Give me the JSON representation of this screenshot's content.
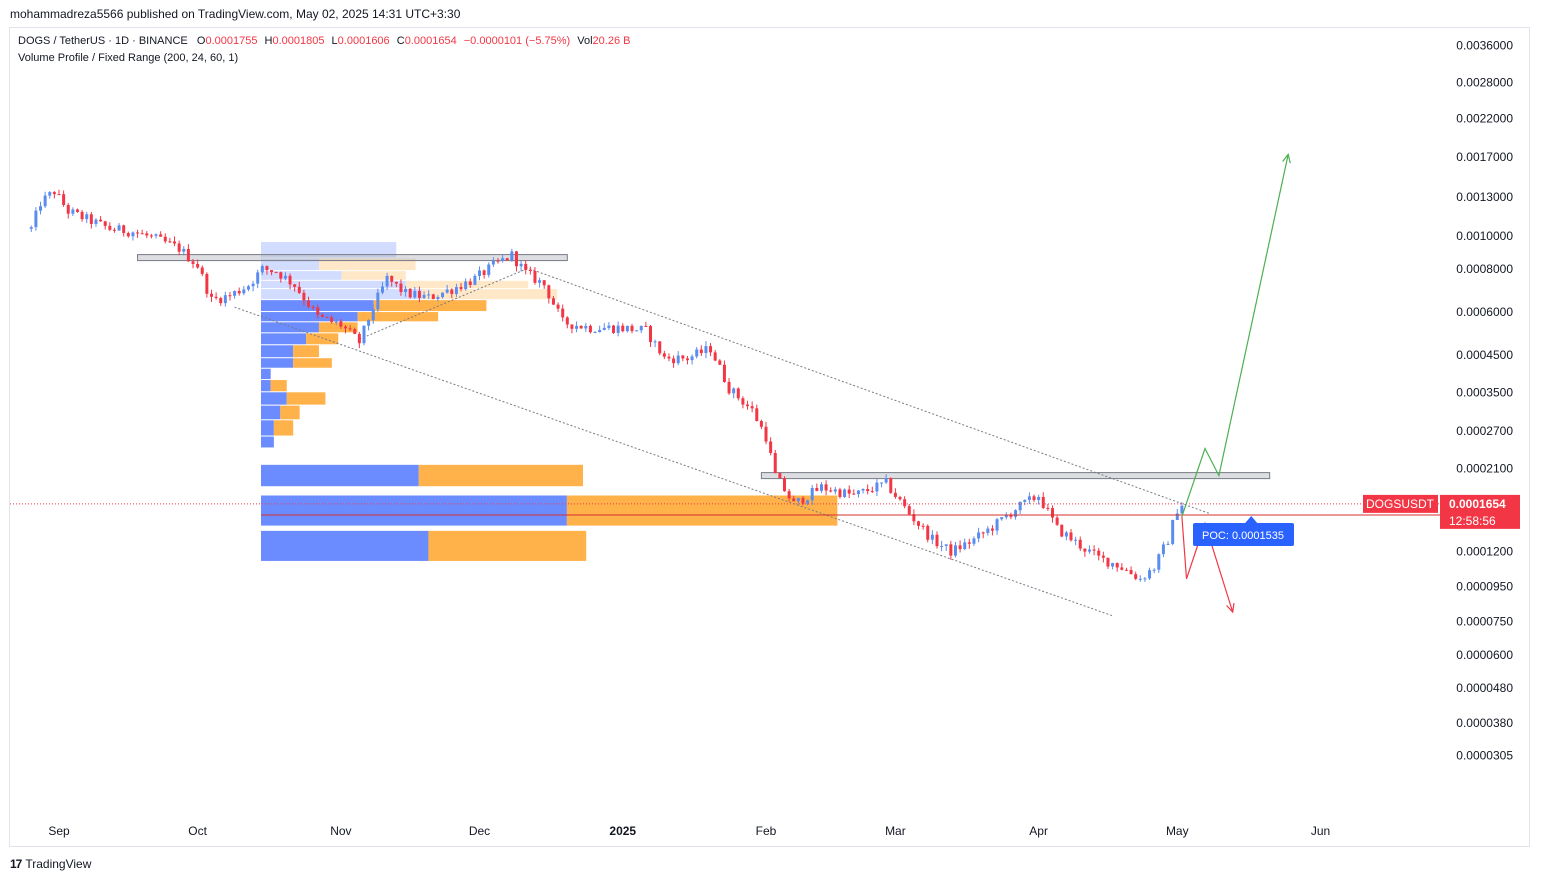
{
  "header": {
    "publisher": "mohammadreza5566 published on TradingView.com, May 02, 2025 14:31 UTC+3:30"
  },
  "legend": {
    "symbol": "DOGS / TetherUS · 1D · BINANCE",
    "open_label": "O",
    "open": "0.0001755",
    "high_label": "H",
    "high": "0.0001805",
    "low_label": "L",
    "low": "0.0001606",
    "close_label": "C",
    "close": "0.0001654",
    "change": "−0.0000101 (−5.75%)",
    "vol_label": "Vol",
    "vol": "20.26 B",
    "indicator": "Volume Profile / Fixed Range (200, 24, 60, 1)"
  },
  "price_tag": {
    "symbol": "DOGSUSDT",
    "price": "0.0001654",
    "countdown": "12:58:56",
    "color": "#f23645"
  },
  "poc": {
    "label": "POC: 0.0001535",
    "color": "#2962ff"
  },
  "footer": {
    "brand": "TradingView",
    "logo": "17"
  },
  "colors": {
    "up": "#5b8def",
    "down": "#f23645",
    "vp_up": "#6b8cff",
    "vp_down": "#ffb24a",
    "resistance": "#b2b5be",
    "bull_arrow": "#4caf50",
    "bear_arrow": "#f23645",
    "poc_line": "#d32f2f"
  },
  "chart_data": {
    "type": "candlestick",
    "scale": "log",
    "y_axis_ticks": [
      "0.0036000",
      "0.0028000",
      "0.0022000",
      "0.0017000",
      "0.0013000",
      "0.0010000",
      "0.0008000",
      "0.0006000",
      "0.0004500",
      "0.0003500",
      "0.0002700",
      "0.0002100",
      "0.0001200",
      "0.0000950",
      "0.0000750",
      "0.0000600",
      "0.0000480",
      "0.0000380",
      "0.0000305"
    ],
    "x_axis_ticks": [
      {
        "label": "Sep",
        "date": "2024-09-01"
      },
      {
        "label": "Oct",
        "date": "2024-10-01"
      },
      {
        "label": "Nov",
        "date": "2024-11-01"
      },
      {
        "label": "Dec",
        "date": "2024-12-01"
      },
      {
        "label": "2025",
        "date": "2025-01-01",
        "bold": true
      },
      {
        "label": "Feb",
        "date": "2025-02-01"
      },
      {
        "label": "Mar",
        "date": "2025-03-01"
      },
      {
        "label": "Apr",
        "date": "2025-04-01"
      },
      {
        "label": "May",
        "date": "2025-05-01"
      },
      {
        "label": "Jun",
        "date": "2025-06-01"
      }
    ],
    "price_path": [
      [
        "2024-08-26",
        0.00105
      ],
      [
        "2024-08-28",
        0.00125
      ],
      [
        "2024-08-31",
        0.00135
      ],
      [
        "2024-09-03",
        0.00118
      ],
      [
        "2024-09-07",
        0.00112
      ],
      [
        "2024-09-12",
        0.00105
      ],
      [
        "2024-09-17",
        0.00103
      ],
      [
        "2024-09-22",
        0.00098
      ],
      [
        "2024-09-27",
        0.00092
      ],
      [
        "2024-10-01",
        0.00082
      ],
      [
        "2024-10-04",
        0.00065
      ],
      [
        "2024-10-08",
        0.00067
      ],
      [
        "2024-10-12",
        0.00072
      ],
      [
        "2024-10-15",
        0.0008
      ],
      [
        "2024-10-18",
        0.00079
      ],
      [
        "2024-10-22",
        0.00072
      ],
      [
        "2024-10-27",
        0.00058
      ],
      [
        "2024-11-01",
        0.00055
      ],
      [
        "2024-11-05",
        0.00049
      ],
      [
        "2024-11-08",
        0.00062
      ],
      [
        "2024-11-11",
        0.00075
      ],
      [
        "2024-11-15",
        0.00068
      ],
      [
        "2024-11-20",
        0.00066
      ],
      [
        "2024-11-25",
        0.0007
      ],
      [
        "2024-11-30",
        0.00075
      ],
      [
        "2024-12-04",
        0.00082
      ],
      [
        "2024-12-08",
        0.00088
      ],
      [
        "2024-12-11",
        0.00078
      ],
      [
        "2024-12-15",
        0.00072
      ],
      [
        "2024-12-19",
        0.00056
      ],
      [
        "2024-12-25",
        0.00054
      ],
      [
        "2024-12-31",
        0.00054
      ],
      [
        "2025-01-06",
        0.00053
      ],
      [
        "2025-01-10",
        0.00044
      ],
      [
        "2025-01-15",
        0.00044
      ],
      [
        "2025-01-20",
        0.00047
      ],
      [
        "2025-01-24",
        0.00036
      ],
      [
        "2025-01-29",
        0.00031
      ],
      [
        "2025-02-01",
        0.00026
      ],
      [
        "2025-02-03",
        0.0002
      ],
      [
        "2025-02-07",
        0.000165
      ],
      [
        "2025-02-13",
        0.000185
      ],
      [
        "2025-02-20",
        0.000175
      ],
      [
        "2025-02-27",
        0.00019
      ],
      [
        "2025-03-04",
        0.000155
      ],
      [
        "2025-03-09",
        0.00013
      ],
      [
        "2025-03-13",
        0.00012
      ],
      [
        "2025-03-18",
        0.00013
      ],
      [
        "2025-03-23",
        0.000145
      ],
      [
        "2025-03-27",
        0.00016
      ],
      [
        "2025-04-01",
        0.000175
      ],
      [
        "2025-04-05",
        0.00014
      ],
      [
        "2025-04-10",
        0.000125
      ],
      [
        "2025-04-14",
        0.000115
      ],
      [
        "2025-04-18",
        0.00011
      ],
      [
        "2025-04-23",
        0.0001
      ],
      [
        "2025-04-26",
        0.000108
      ],
      [
        "2025-04-29",
        0.00013
      ],
      [
        "2025-05-01",
        0.00016
      ],
      [
        "2025-05-02",
        0.0001654
      ]
    ],
    "volume_profile": {
      "rows": [
        {
          "price_low": 0.00086,
          "price_high": 0.00096,
          "up": 0.42,
          "down": 0.0,
          "faded": true
        },
        {
          "price_low": 0.00079,
          "price_high": 0.00086,
          "up": 0.18,
          "down": 0.3,
          "faded": true
        },
        {
          "price_low": 0.00074,
          "price_high": 0.00079,
          "up": 0.25,
          "down": 0.2,
          "faded": true
        },
        {
          "price_low": 0.0007,
          "price_high": 0.00074,
          "up": 0.45,
          "down": 0.38,
          "faded": true
        },
        {
          "price_low": 0.00065,
          "price_high": 0.0007,
          "up": 0.5,
          "down": 0.42,
          "faded": true
        },
        {
          "price_low": 0.0006,
          "price_high": 0.00065,
          "up": 0.35,
          "down": 0.35
        },
        {
          "price_low": 0.00056,
          "price_high": 0.0006,
          "up": 0.3,
          "down": 0.25
        },
        {
          "price_low": 0.00052,
          "price_high": 0.00056,
          "up": 0.18,
          "down": 0.12
        },
        {
          "price_low": 0.00048,
          "price_high": 0.00052,
          "up": 0.14,
          "down": 0.1
        },
        {
          "price_low": 0.00044,
          "price_high": 0.00048,
          "up": 0.1,
          "down": 0.08
        },
        {
          "price_low": 0.00041,
          "price_high": 0.00044,
          "up": 0.1,
          "down": 0.12
        },
        {
          "price_low": 0.00038,
          "price_high": 0.00041,
          "up": 0.03,
          "down": 0.0
        },
        {
          "price_low": 0.00035,
          "price_high": 0.00038,
          "up": 0.03,
          "down": 0.05
        },
        {
          "price_low": 0.00032,
          "price_high": 0.00035,
          "up": 0.08,
          "down": 0.12
        },
        {
          "price_low": 0.00029,
          "price_high": 0.00032,
          "up": 0.06,
          "down": 0.06
        },
        {
          "price_low": 0.00026,
          "price_high": 0.00029,
          "up": 0.04,
          "down": 0.06
        },
        {
          "price_low": 0.00024,
          "price_high": 0.00026,
          "up": 0.04,
          "down": 0.0
        },
        {
          "price_low": 0.000185,
          "price_high": 0.000215,
          "up": 0.49,
          "down": 0.51
        },
        {
          "price_low": 0.000142,
          "price_high": 0.000175,
          "up": 0.95,
          "down": 0.84
        },
        {
          "price_low": 0.000112,
          "price_high": 0.000138,
          "up": 0.52,
          "down": 0.49
        }
      ]
    },
    "annotations": {
      "resistance_zone_1": {
        "from": "2024-09-18",
        "to": "2024-12-20",
        "price": 0.000865
      },
      "resistance_zone_2": {
        "from": "2025-01-31",
        "to": "2025-05-21",
        "price": 0.0002
      },
      "poc_price": 0.0001535,
      "current_price": 0.0001654,
      "bull_arrow": [
        [
          "2025-05-02",
          0.000152
        ],
        [
          "2025-05-07",
          0.00024
        ],
        [
          "2025-05-10",
          0.0002
        ],
        [
          "2025-05-25",
          0.00173
        ]
      ],
      "bear_arrow": [
        [
          "2025-05-02",
          0.000152
        ],
        [
          "2025-05-03",
          0.0001
        ],
        [
          "2025-05-07",
          0.000145
        ],
        [
          "2025-05-13",
          8e-05
        ]
      ]
    }
  }
}
